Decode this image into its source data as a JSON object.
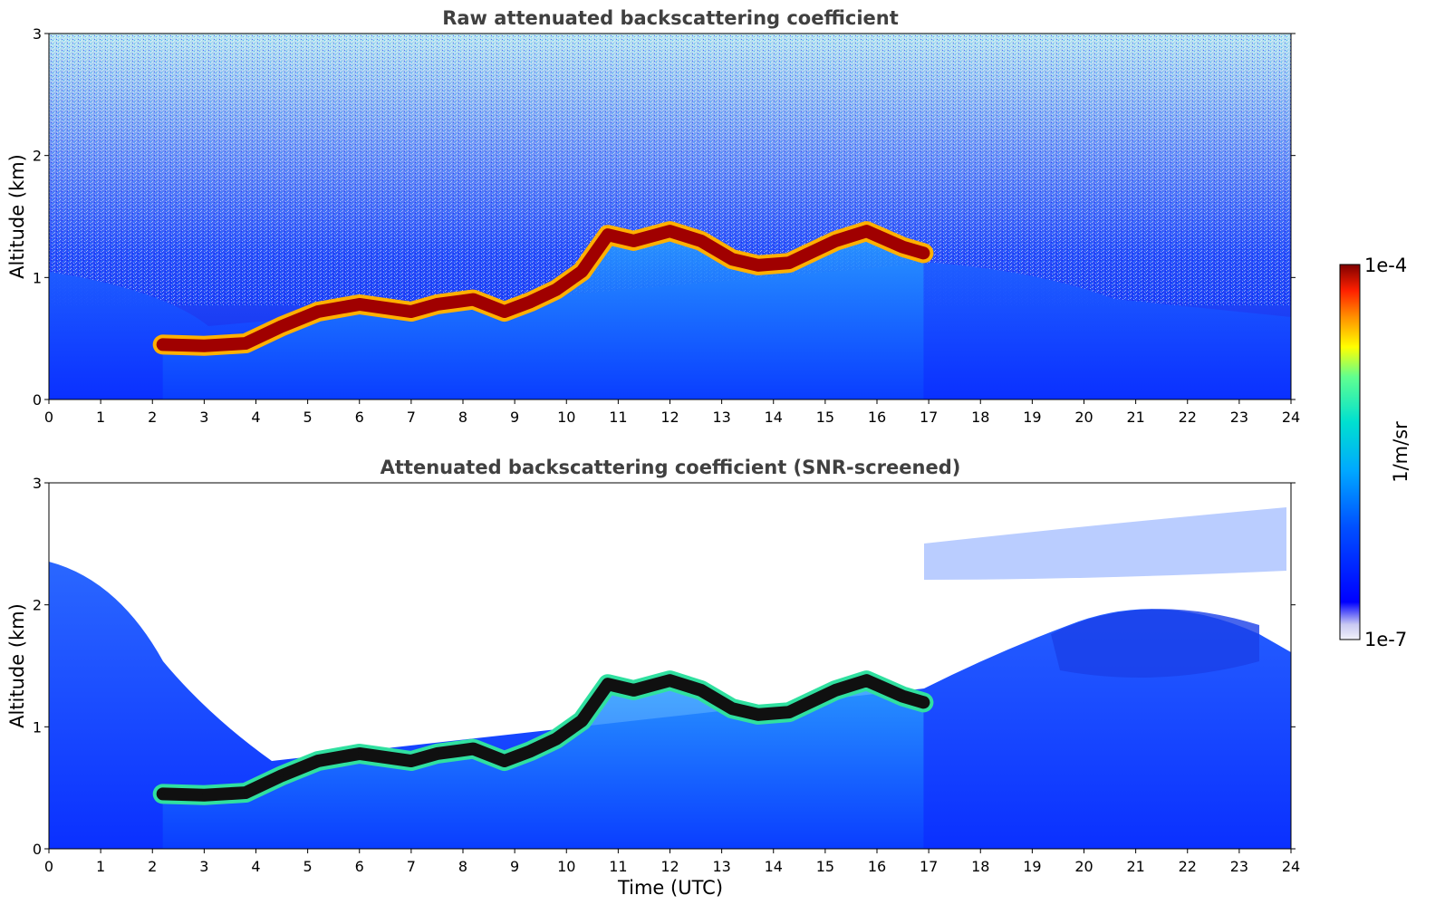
{
  "chart_data": [
    {
      "type": "heatmap",
      "title": "Raw attenuated backscattering coefficient",
      "xlabel": "",
      "ylabel": "Altitude (km)",
      "xlim": [
        0,
        24
      ],
      "ylim": [
        0,
        3
      ],
      "xticks": [
        "0",
        "1",
        "2",
        "3",
        "4",
        "5",
        "6",
        "7",
        "8",
        "9",
        "10",
        "11",
        "12",
        "13",
        "14",
        "15",
        "16",
        "17",
        "18",
        "19",
        "20",
        "21",
        "22",
        "23",
        "24"
      ],
      "yticks": [
        "0",
        "1",
        "2",
        "3"
      ],
      "layer_top_km": [
        [
          2.2,
          0.45
        ],
        [
          3.0,
          0.44
        ],
        [
          3.8,
          0.46
        ],
        [
          4.5,
          0.6
        ],
        [
          5.2,
          0.72
        ],
        [
          6.0,
          0.78
        ],
        [
          7.0,
          0.72
        ],
        [
          7.5,
          0.78
        ],
        [
          8.2,
          0.82
        ],
        [
          8.8,
          0.72
        ],
        [
          9.3,
          0.8
        ],
        [
          9.8,
          0.9
        ],
        [
          10.3,
          1.05
        ],
        [
          10.8,
          1.35
        ],
        [
          11.3,
          1.3
        ],
        [
          12.0,
          1.38
        ],
        [
          12.6,
          1.3
        ],
        [
          13.2,
          1.15
        ],
        [
          13.7,
          1.1
        ],
        [
          14.3,
          1.12
        ],
        [
          15.2,
          1.3
        ],
        [
          15.8,
          1.38
        ],
        [
          16.5,
          1.25
        ],
        [
          16.9,
          1.2
        ]
      ]
    },
    {
      "type": "heatmap",
      "title": "Attenuated backscattering coefficient (SNR-screened)",
      "xlabel": "Time (UTC)",
      "ylabel": "Altitude (km)",
      "xlim": [
        0,
        24
      ],
      "ylim": [
        0,
        3
      ],
      "xticks": [
        "0",
        "1",
        "2",
        "3",
        "4",
        "5",
        "6",
        "7",
        "8",
        "9",
        "10",
        "11",
        "12",
        "13",
        "14",
        "15",
        "16",
        "17",
        "18",
        "19",
        "20",
        "21",
        "22",
        "23",
        "24"
      ],
      "yticks": [
        "0",
        "1",
        "2",
        "3"
      ],
      "layer_top_km": [
        [
          2.2,
          0.45
        ],
        [
          3.0,
          0.44
        ],
        [
          3.8,
          0.46
        ],
        [
          4.5,
          0.6
        ],
        [
          5.2,
          0.72
        ],
        [
          6.0,
          0.78
        ],
        [
          7.0,
          0.72
        ],
        [
          7.5,
          0.78
        ],
        [
          8.2,
          0.82
        ],
        [
          8.8,
          0.72
        ],
        [
          9.3,
          0.8
        ],
        [
          9.8,
          0.9
        ],
        [
          10.3,
          1.05
        ],
        [
          10.8,
          1.35
        ],
        [
          11.3,
          1.3
        ],
        [
          12.0,
          1.38
        ],
        [
          12.6,
          1.3
        ],
        [
          13.2,
          1.15
        ],
        [
          13.7,
          1.1
        ],
        [
          14.3,
          1.12
        ],
        [
          15.2,
          1.3
        ],
        [
          15.8,
          1.38
        ],
        [
          16.5,
          1.25
        ],
        [
          16.9,
          1.2
        ]
      ]
    }
  ],
  "colorbar": {
    "label": "1/m/sr",
    "max_label": "1e-4",
    "min_label": "1e-7",
    "scale": "log",
    "range": [
      1e-07,
      0.0001
    ],
    "colormap": [
      "#f2f2fa",
      "#c9c9f2",
      "#0000ff",
      "#0050ff",
      "#00a8ff",
      "#00e0d0",
      "#60ff90",
      "#ffff00",
      "#ff9000",
      "#ff2000",
      "#7f0000"
    ]
  }
}
